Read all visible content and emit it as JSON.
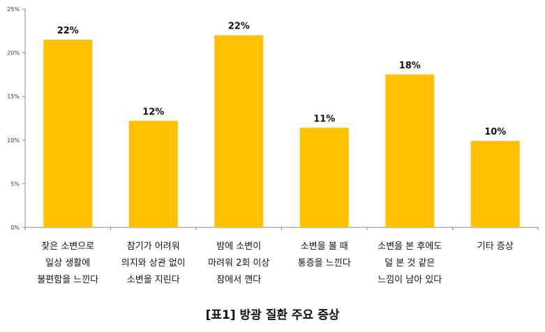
{
  "chart_data": {
    "type": "bar",
    "categories": [
      [
        "잦은 소변으로",
        "일상 생활에",
        "불편함을 느낀다"
      ],
      [
        "참기가 어려워",
        "의지와 상관 없이",
        "소변을 지린다"
      ],
      [
        "밤에 소변이",
        "마려워 2회 이상",
        "잠에서 깬다"
      ],
      [
        "소변을 볼 때",
        "통증을 느낀다"
      ],
      [
        "소변을 본 후에도",
        "덜 본 것 같은",
        "느낌이 남아 있다"
      ],
      [
        "기타 증상"
      ]
    ],
    "values": [
      21.5,
      12.2,
      22.0,
      11.4,
      17.5,
      9.9
    ],
    "data_labels": [
      "22%",
      "12%",
      "22%",
      "11%",
      "18%",
      "10%"
    ],
    "y_ticks": [
      "0%",
      "5%",
      "10%",
      "15%",
      "20%",
      "25%"
    ],
    "ylim": [
      0,
      25
    ],
    "title": "",
    "xlabel": "",
    "ylabel": "",
    "grid": false,
    "legend": "none",
    "bar_color": "#FFC000",
    "axis_color": "#868686"
  },
  "caption": "[표1] 방광 질환 주요 증상"
}
